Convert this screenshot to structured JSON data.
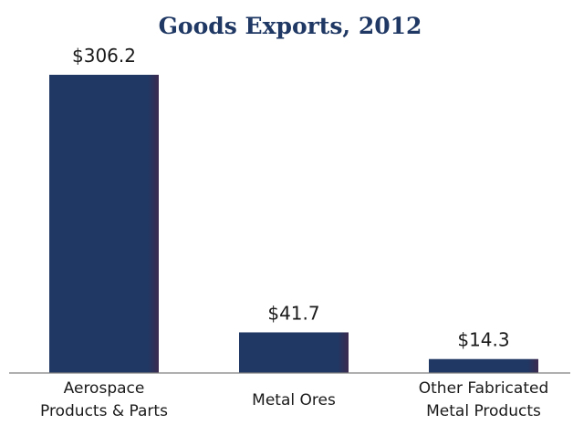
{
  "chart_data": {
    "type": "bar",
    "title": "Goods Exports, 2012",
    "categories": [
      [
        "Aerospace",
        "Products & Parts"
      ],
      [
        "Metal Ores"
      ],
      [
        "Other Fabricated",
        "Metal Products"
      ]
    ],
    "values": [
      306.2,
      41.7,
      14.3
    ],
    "value_labels": [
      "$306.2",
      "$41.7",
      "$14.3"
    ],
    "xlabel": "",
    "ylabel": "",
    "ylim": [
      0,
      306.2
    ],
    "grid": false,
    "legend": "none",
    "colors": {
      "bar": "#1f3864",
      "bar_edge": "#3d2a4f",
      "title": "#1f3864",
      "axis": "#7f7f7f"
    }
  }
}
